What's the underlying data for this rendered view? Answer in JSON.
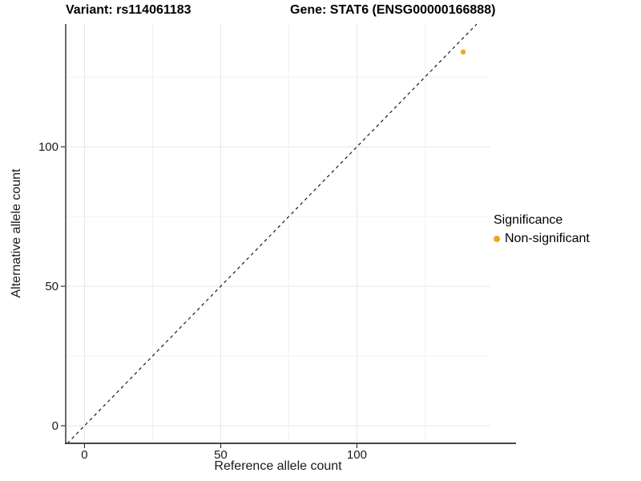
{
  "figure": {
    "title_left": "Variant: rs114061183",
    "title_right": "Gene: STAT6 (ENSG00000166888)"
  },
  "chart_data": {
    "type": "scatter",
    "xlabel": "Reference allele count",
    "ylabel": "Alternative allele count",
    "xlim": [
      -6.9,
      149.0
    ],
    "ylim": [
      -6.3,
      144.0
    ],
    "x_major_ticks": [
      0,
      50,
      100
    ],
    "y_major_ticks": [
      0,
      50,
      100
    ],
    "x_minor_gridlines": [
      25,
      75,
      125
    ],
    "y_minor_gridlines": [
      25,
      75,
      125
    ],
    "grid": true,
    "identity_line": {
      "style": "dashed",
      "color": "#1a1a1a",
      "x1": -6.3,
      "y1": -6.3,
      "x2": 144.0,
      "y2": 144.0
    },
    "series": [
      {
        "name": "Non-significant",
        "color": "#F9A21B",
        "points": [
          {
            "x": 139,
            "y": 134
          }
        ]
      }
    ],
    "legend": {
      "title": "Significance",
      "position": "right",
      "entries": [
        {
          "label": "Non-significant",
          "color": "#F9A21B"
        }
      ]
    },
    "colors": {
      "gridline_major": "#E7E7E7",
      "gridline_minor": "#F2F2F2",
      "axis_line": "#2b2b2b",
      "tick_mark": "#333333",
      "tick_text": "#1a1a1a"
    }
  }
}
